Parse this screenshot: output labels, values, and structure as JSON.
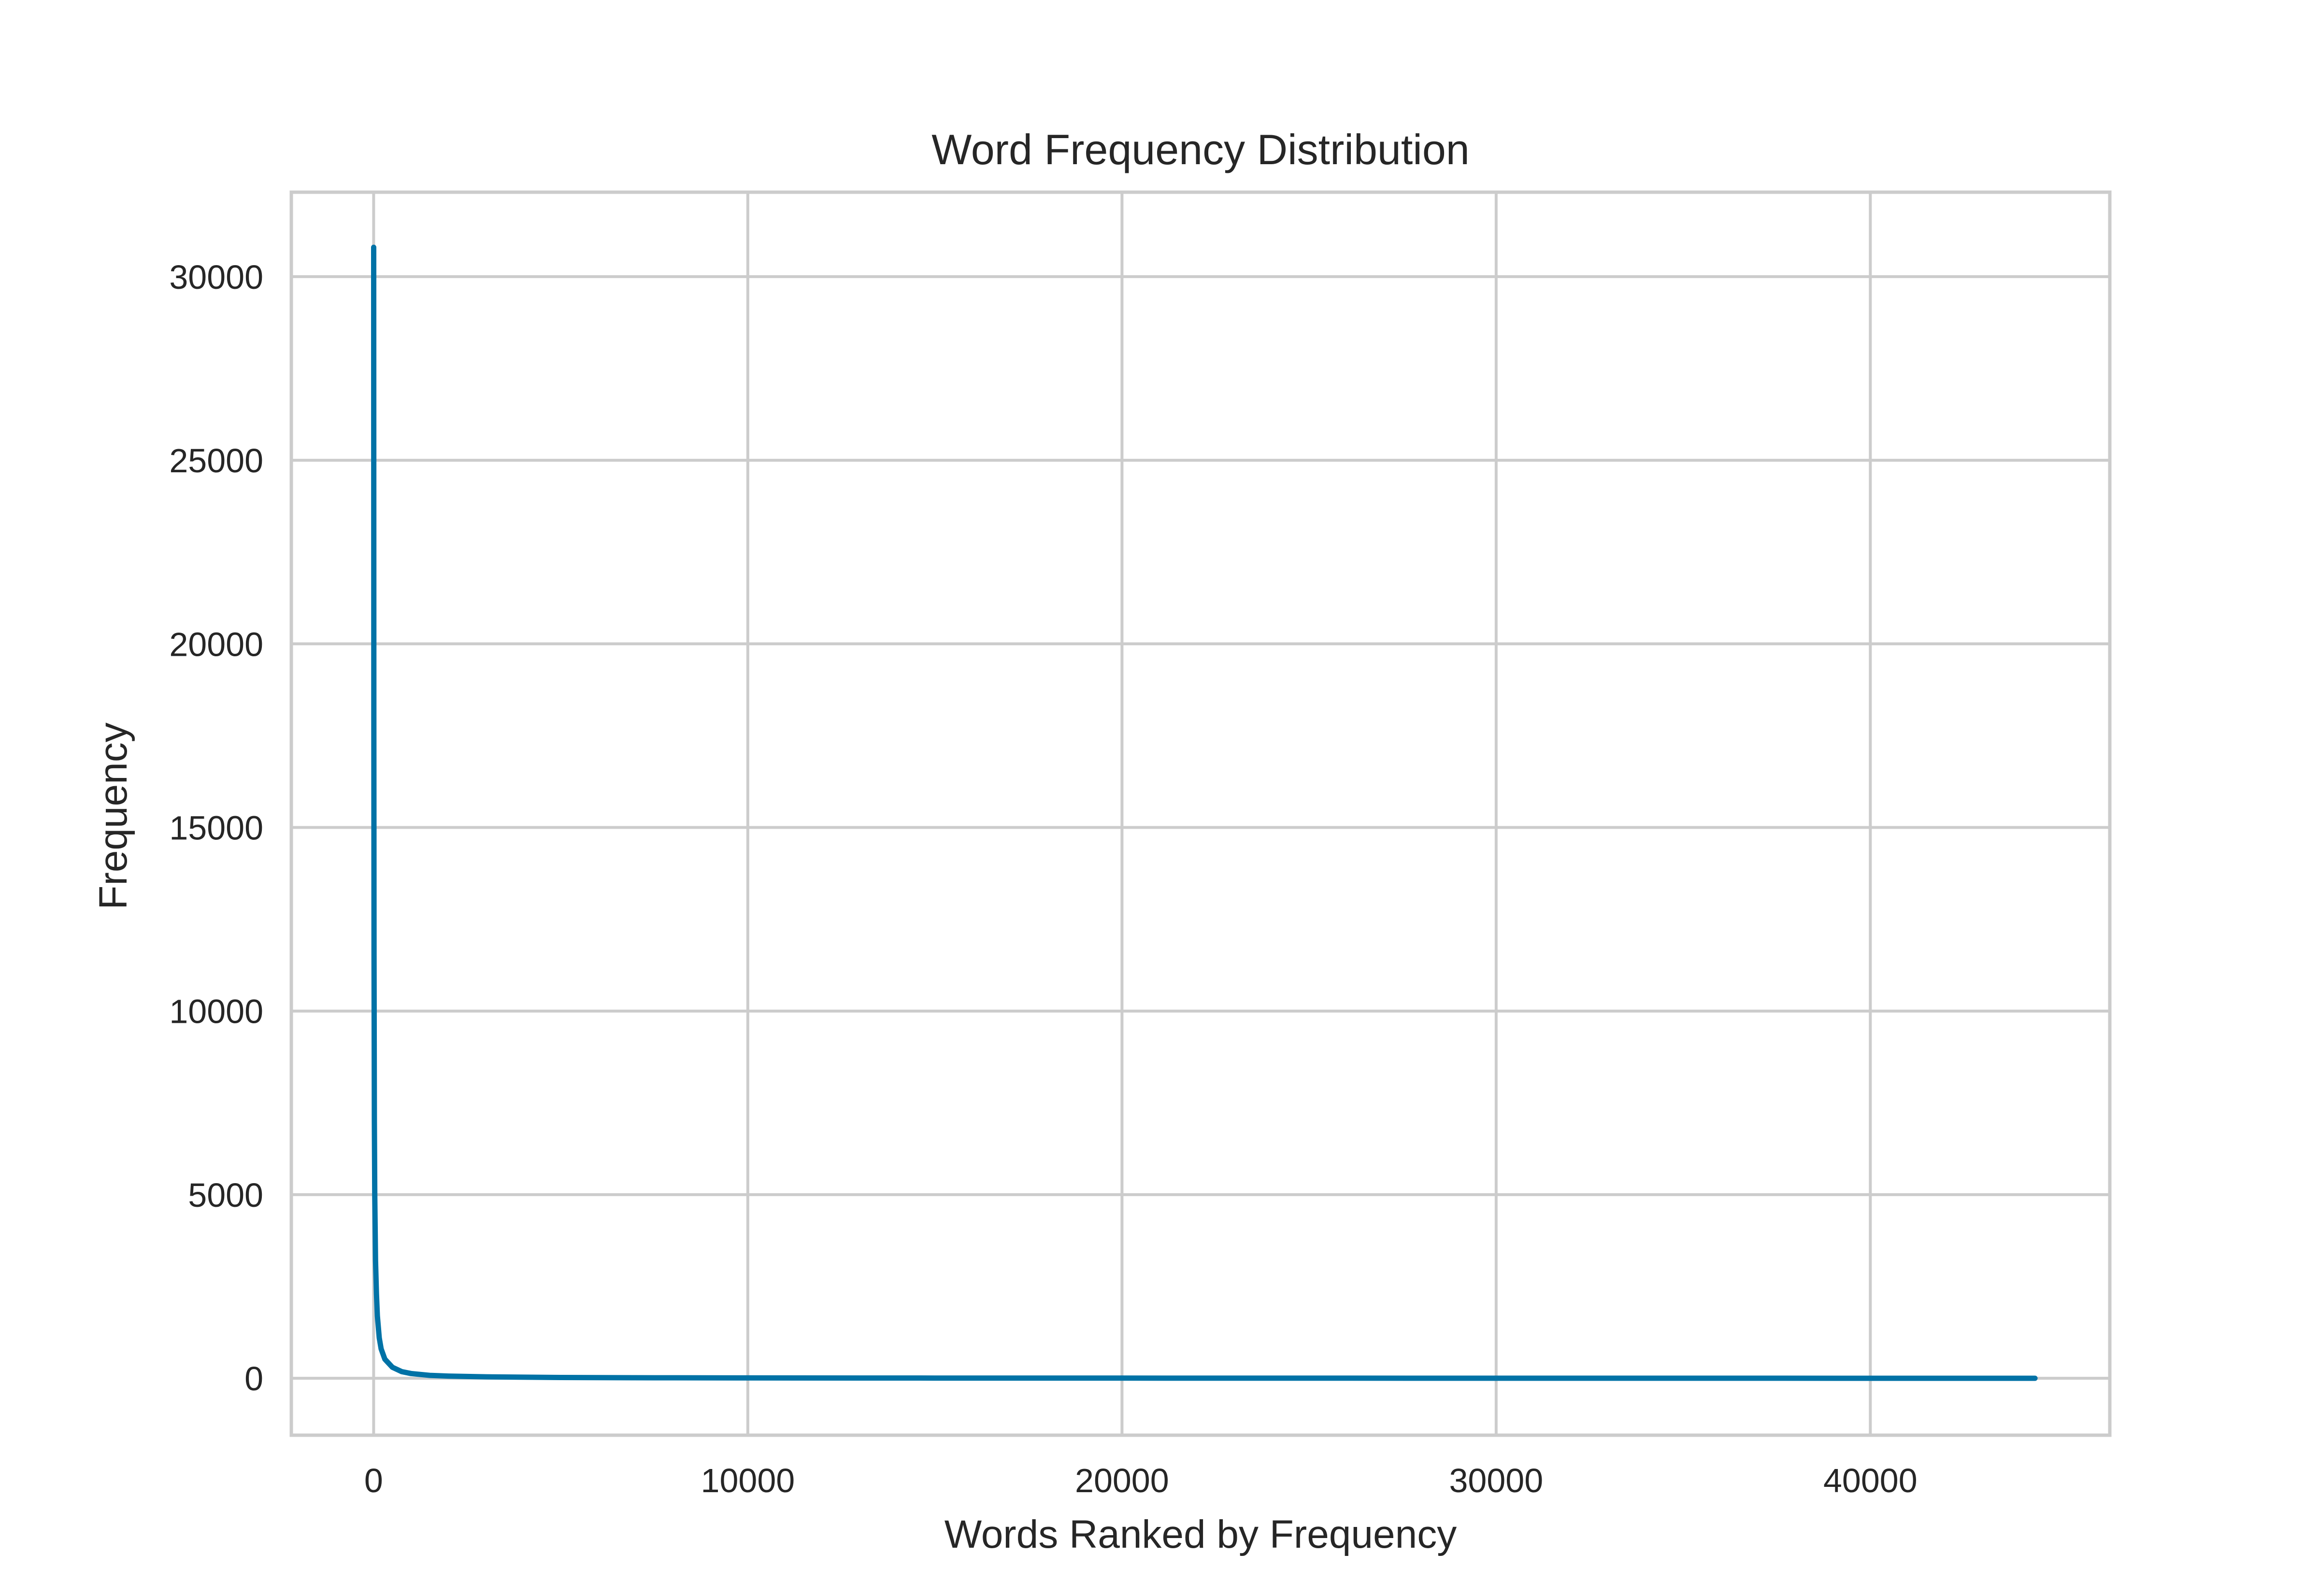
{
  "chart_data": {
    "type": "line",
    "title": "Word Frequency Distribution",
    "xlabel": "Words Ranked by Frequency",
    "ylabel": "Frequency",
    "xlim": [
      -2200,
      46400
    ],
    "ylim": [
      -1550,
      32300
    ],
    "x_ticks": [
      0,
      10000,
      20000,
      30000,
      40000
    ],
    "x_tick_labels": [
      "0",
      "10000",
      "20000",
      "30000",
      "40000"
    ],
    "y_ticks": [
      0,
      5000,
      10000,
      15000,
      20000,
      25000,
      30000
    ],
    "y_tick_labels": [
      "0",
      "5000",
      "10000",
      "15000",
      "20000",
      "25000",
      "30000"
    ],
    "grid": true,
    "line_color": "#0072a6",
    "grid_color": "#cccccc",
    "spine_color": "#cccccc",
    "series": [
      {
        "x": [
          1,
          5,
          10,
          20,
          30,
          50,
          75,
          100,
          150,
          200,
          300,
          500,
          750,
          1000,
          1500,
          2000,
          3000,
          5000,
          7500,
          10000,
          15000,
          20000,
          25000,
          30000,
          35000,
          40000,
          44400
        ],
        "y": [
          30800,
          18000,
          11500,
          7000,
          5000,
          3200,
          2300,
          1700,
          1100,
          800,
          520,
          300,
          180,
          130,
          80,
          60,
          40,
          22,
          14,
          10,
          6,
          4,
          3,
          2,
          2,
          1,
          1
        ]
      }
    ]
  }
}
